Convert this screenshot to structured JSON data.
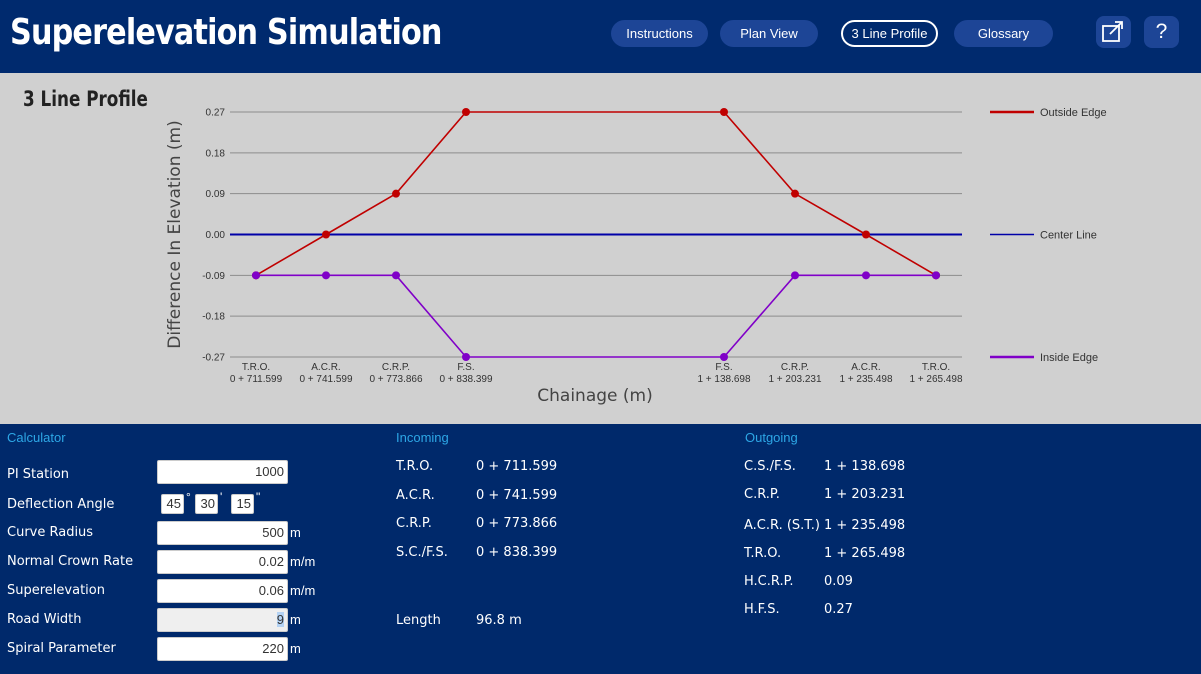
{
  "app": {
    "title": "Superelevation Simulation"
  },
  "nav": {
    "instructions": "Instructions",
    "plan_view": "Plan View",
    "three_line_profile": "3 Line Profile",
    "glossary": "Glossary",
    "popout_icon": "external-window-icon",
    "help_label": "?"
  },
  "chart_heading": "3 Line Profile",
  "chart_data": {
    "type": "line",
    "ylabel": "Difference In Elevation (m)",
    "xlabel": "Chainage (m)",
    "ylim": [
      -0.27,
      0.27
    ],
    "yticks": [
      "0.27",
      "0.18",
      "0.09",
      "0.00",
      "-0.09",
      "-0.18",
      "-0.27"
    ],
    "x": [
      711.599,
      741.599,
      773.866,
      838.399,
      1138.698,
      1203.231,
      1235.498,
      1265.498
    ],
    "xtick_names": [
      "T.R.O.",
      "A.C.R.",
      "C.R.P.",
      "F.S.",
      "F.S.",
      "C.R.P.",
      "A.C.R.",
      "T.R.O."
    ],
    "xtick_values": [
      "0 + 711.599",
      "0 + 741.599",
      "0 + 773.866",
      "0 + 838.399",
      "1 + 138.698",
      "1 + 203.231",
      "1 + 235.498",
      "1 + 265.498"
    ],
    "grid": true,
    "legend_position": "right",
    "series": [
      {
        "name": "Outside Edge",
        "color": "#c00000",
        "values": [
          -0.09,
          0.0,
          0.09,
          0.27,
          0.27,
          0.09,
          0.0,
          -0.09
        ]
      },
      {
        "name": "Center Line",
        "color": "#0000a8",
        "values": [
          0.0,
          0.0,
          0.0,
          0.0,
          0.0,
          0.0,
          0.0,
          0.0
        ]
      },
      {
        "name": "Inside Edge",
        "color": "#8000c8",
        "values": [
          -0.09,
          -0.09,
          -0.09,
          -0.27,
          -0.27,
          -0.09,
          -0.09,
          -0.09
        ]
      }
    ]
  },
  "calculator": {
    "title": "Calculator",
    "pi_station": {
      "label": "PI Station",
      "value": "1000"
    },
    "deflection_angle": {
      "label": "Deflection Angle",
      "degrees": "45",
      "minutes": "30",
      "seconds": "15",
      "deg_symbol": "°",
      "min_symbol": "'",
      "sec_symbol": "\""
    },
    "curve_radius": {
      "label": "Curve Radius",
      "value": "500",
      "unit": "m"
    },
    "normal_crown_rate": {
      "label": "Normal Crown Rate",
      "value": "0.02",
      "unit": "m/m"
    },
    "superelevation": {
      "label": "Superelevation",
      "value": "0.06",
      "unit": "m/m"
    },
    "road_width": {
      "label": "Road Width",
      "value": "9",
      "unit": "m"
    },
    "spiral_parameter": {
      "label": "Spiral Parameter",
      "value": "220",
      "unit": "m"
    }
  },
  "incoming": {
    "title": "Incoming",
    "rows": [
      {
        "label": "T.R.O.",
        "value": "0 + 711.599"
      },
      {
        "label": "A.C.R.",
        "value": "0 + 741.599"
      },
      {
        "label": "C.R.P.",
        "value": "0 + 773.866"
      },
      {
        "label": "S.C./F.S.",
        "value": "0 + 838.399"
      }
    ],
    "length_label": "Length",
    "length_value": "96.8 m"
  },
  "outgoing": {
    "title": "Outgoing",
    "rows": [
      {
        "label": "C.S./F.S.",
        "value": "1 + 138.698"
      },
      {
        "label": "C.R.P.",
        "value": "1 + 203.231"
      },
      {
        "label": "A.C.R. (S.T.)",
        "value": "1 + 235.498"
      },
      {
        "label": "T.R.O.",
        "value": "1 + 265.498"
      },
      {
        "label": "H.C.R.P.",
        "value": "0.09"
      },
      {
        "label": "H.F.S.",
        "value": "0.27"
      }
    ]
  }
}
